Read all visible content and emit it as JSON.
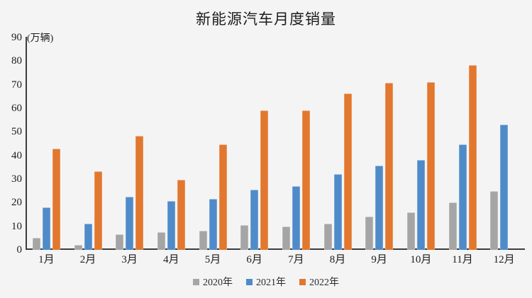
{
  "chart": {
    "title": "新能源汽车月度销量",
    "unit_label": "(万辆)"
  },
  "chart_data": {
    "type": "bar",
    "title": "新能源汽车月度销量",
    "ylabel": "(万辆)",
    "xlabel": "",
    "categories": [
      "1月",
      "2月",
      "3月",
      "4月",
      "5月",
      "6月",
      "7月",
      "8月",
      "9月",
      "10月",
      "11月",
      "12月"
    ],
    "series": [
      {
        "name": "2020年",
        "color": "#a5a5a5",
        "values": [
          5,
          2,
          6.6,
          7.5,
          8.2,
          10.4,
          9.8,
          11,
          14,
          16,
          20,
          25
        ]
      },
      {
        "name": "2021年",
        "color": "#4f8bc9",
        "values": [
          18,
          11,
          22.6,
          20.6,
          21.7,
          25.6,
          27.1,
          32.2,
          35.7,
          38.2,
          44.7,
          53
        ]
      },
      {
        "name": "2022年",
        "color": "#e2772e",
        "values": [
          43,
          33.4,
          48.2,
          29.8,
          44.6,
          59.2,
          59,
          66.3,
          70.7,
          71.1,
          78.4,
          null
        ]
      }
    ],
    "ylim": [
      0,
      90
    ],
    "ytick_step": 10,
    "grid": false,
    "legend_position": "bottom",
    "background": "#f4f4f5"
  }
}
